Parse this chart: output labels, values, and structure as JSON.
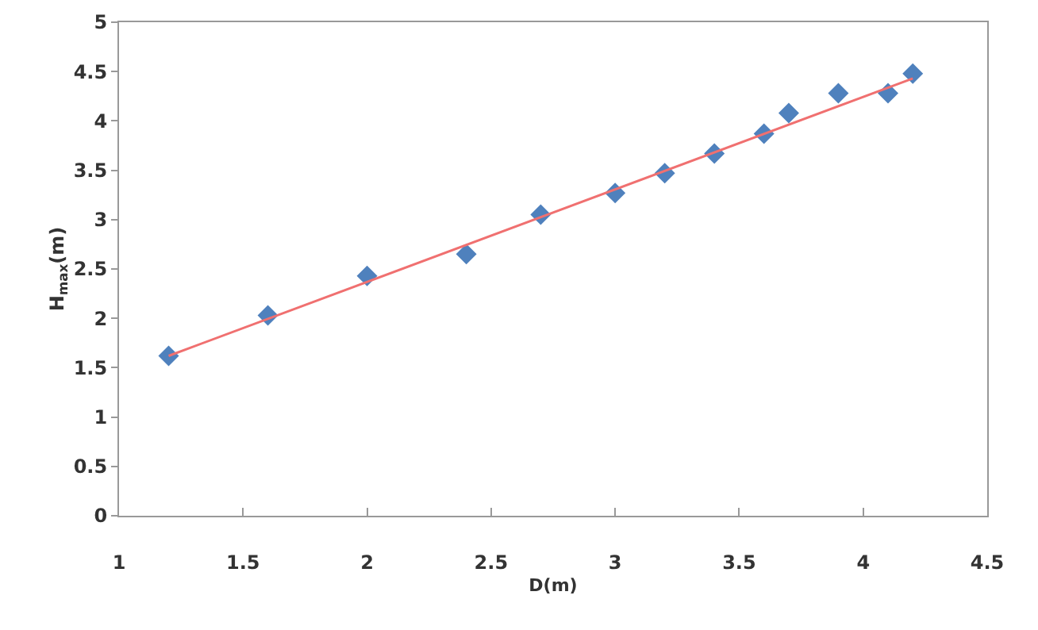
{
  "chart_data": {
    "type": "scatter",
    "xlabel": "D(m)",
    "ylabel": "H$_{max}$(m)",
    "x": [
      1.2,
      1.6,
      2.0,
      2.4,
      2.7,
      3.0,
      3.2,
      3.4,
      3.6,
      3.7,
      3.9,
      4.1,
      4.2
    ],
    "series": [
      {
        "color": "#4f81bd",
        "values": [
          1.62,
          2.03,
          2.43,
          2.65,
          3.05,
          3.27,
          3.47,
          3.67,
          3.87,
          4.08,
          4.28,
          4.28,
          4.48
        ]
      },
      {
        "type": "line",
        "marker": "none",
        "color": "#f07070",
        "x": [
          1.2,
          4.2
        ],
        "values": [
          1.62,
          4.43
        ]
      }
    ],
    "marker": "diamond",
    "grid": false,
    "legend": false,
    "xlim": [
      1,
      4.5
    ],
    "xticks": [
      1,
      1.5,
      2,
      2.5,
      3,
      3.5,
      4,
      4.5
    ],
    "ylim": [
      0,
      5
    ],
    "yticks": [
      0,
      0.5,
      1,
      1.5,
      2,
      2.5,
      3,
      3.5,
      4,
      4.5,
      5
    ]
  }
}
